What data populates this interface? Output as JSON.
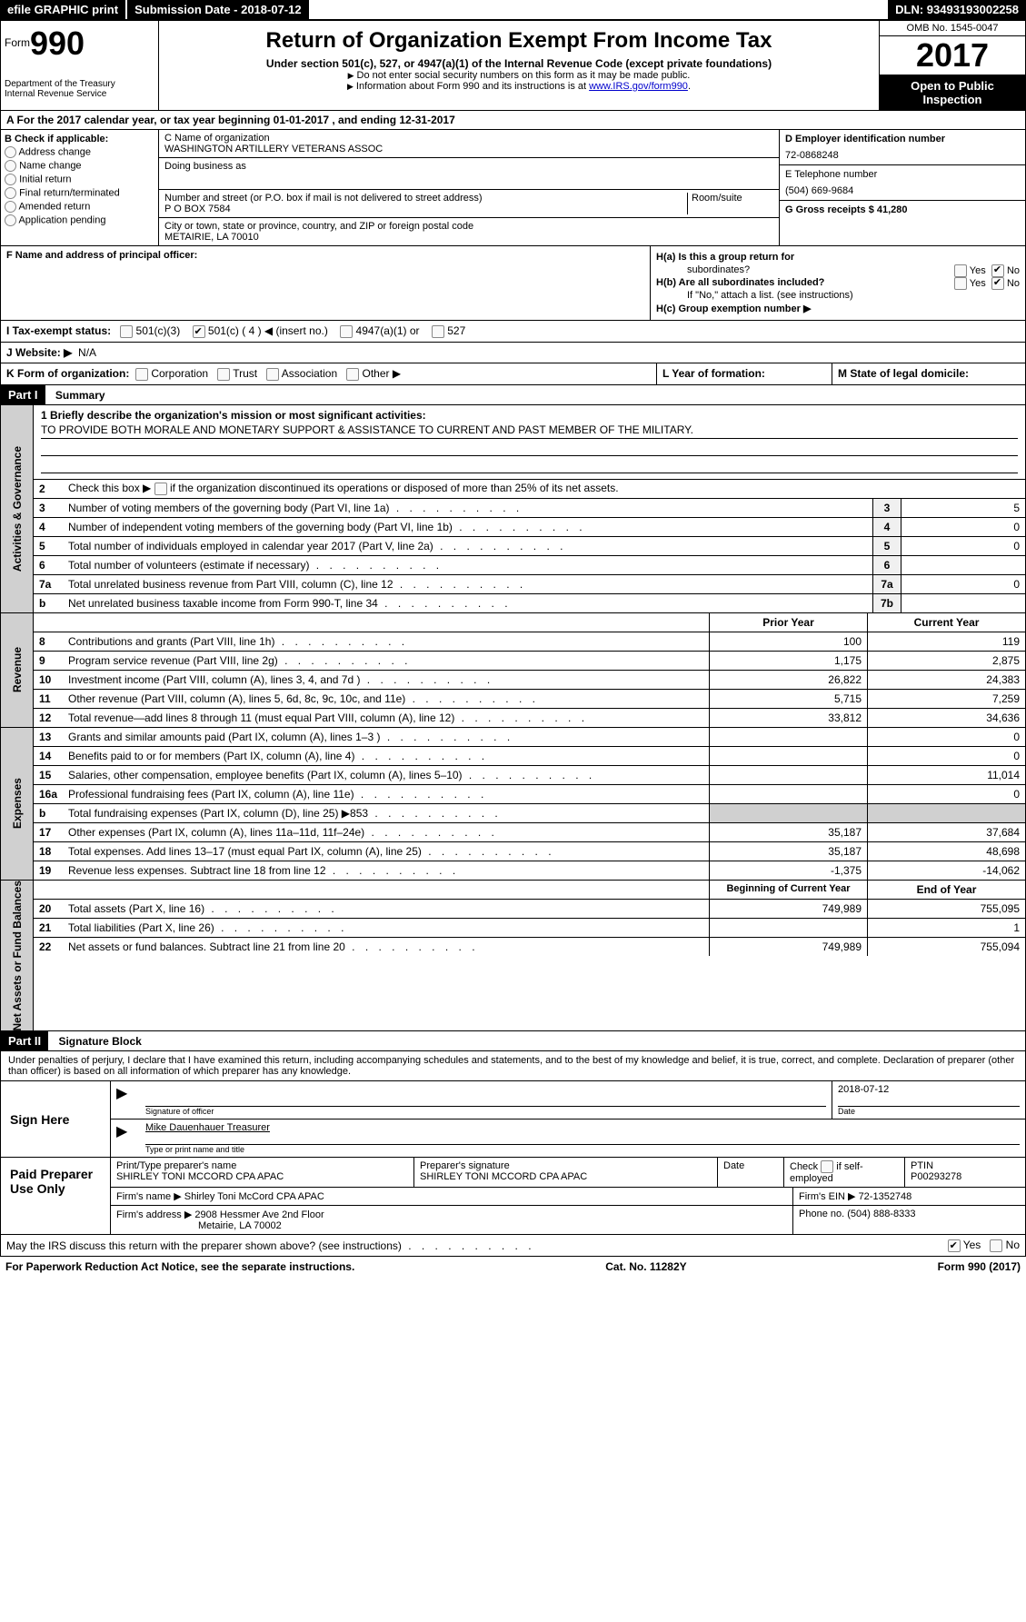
{
  "topbar": {
    "efile": "efile GRAPHIC print",
    "submission_label": "Submission Date - 2018-07-12",
    "dln": "DLN: 93493193002258"
  },
  "header": {
    "form_label": "Form",
    "form_number": "990",
    "dept1": "Department of the Treasury",
    "dept2": "Internal Revenue Service",
    "title": "Return of Organization Exempt From Income Tax",
    "subtitle": "Under section 501(c), 527, or 4947(a)(1) of the Internal Revenue Code (except private foundations)",
    "note1": "Do not enter social security numbers on this form as it may be made public.",
    "note2_pre": "Information about Form 990 and its instructions is at ",
    "note2_link": "www.IRS.gov/form990",
    "omb": "OMB No. 1545-0047",
    "year": "2017",
    "inspection1": "Open to Public",
    "inspection2": "Inspection"
  },
  "section_a": "A  For the 2017 calendar year, or tax year beginning 01-01-2017    , and ending 12-31-2017",
  "col_b": {
    "title": "B Check if applicable:",
    "opts": [
      "Address change",
      "Name change",
      "Initial return",
      "Final return/terminated",
      "Amended return",
      "Application pending"
    ]
  },
  "col_c": {
    "name_label": "C Name of organization",
    "name_value": "WASHINGTON ARTILLERY VETERANS ASSOC",
    "dba_label": "Doing business as",
    "dba_value": "",
    "street_label": "Number and street (or P.O. box if mail is not delivered to street address)",
    "street_value": "P O BOX 7584",
    "room_label": "Room/suite",
    "city_label": "City or town, state or province, country, and ZIP or foreign postal code",
    "city_value": "METAIRIE, LA   70010"
  },
  "col_d": {
    "ein_label": "D Employer identification number",
    "ein_value": "72-0868248",
    "phone_label": "E Telephone number",
    "phone_value": "(504) 669-9684",
    "gross_label": "G Gross receipts $ 41,280"
  },
  "section_f": {
    "f_label": "F Name and address of principal officer:",
    "ha_label": "H(a)  Is this a group return for",
    "ha_sub": "subordinates?",
    "hb_label": "H(b)  Are all subordinates included?",
    "hb_note": "If \"No,\" attach a list. (see instructions)",
    "hc_label": "H(c)  Group exemption number ▶",
    "yes": "Yes",
    "no": "No"
  },
  "section_i": {
    "label": "I   Tax-exempt status:",
    "opt1": "501(c)(3)",
    "opt2": "501(c) ( 4 ) ◀ (insert no.)",
    "opt3": "4947(a)(1) or",
    "opt4": "527"
  },
  "section_j": {
    "label": "J   Website: ▶",
    "value": "N/A"
  },
  "section_k": {
    "k_label": "K Form of organization:",
    "k_opts": [
      "Corporation",
      "Trust",
      "Association",
      "Other ▶"
    ],
    "l_label": "L Year of formation:",
    "m_label": "M State of legal domicile:"
  },
  "part1": {
    "header": "Part I",
    "title": "Summary"
  },
  "governance": {
    "tab": "Activities & Governance",
    "line1_label": "1  Briefly describe the organization's mission or most significant activities:",
    "mission": "TO PROVIDE BOTH MORALE AND MONETARY SUPPORT & ASSISTANCE TO CURRENT AND PAST MEMBER OF THE MILITARY.",
    "line2": "Check this box ▶       if the organization discontinued its operations or disposed of more than 25% of its net assets.",
    "rows": [
      {
        "n": "3",
        "t": "Number of voting members of the governing body (Part VI, line 1a)",
        "box": "3",
        "v": "5"
      },
      {
        "n": "4",
        "t": "Number of independent voting members of the governing body (Part VI, line 1b)",
        "box": "4",
        "v": "0"
      },
      {
        "n": "5",
        "t": "Total number of individuals employed in calendar year 2017 (Part V, line 2a)",
        "box": "5",
        "v": "0"
      },
      {
        "n": "6",
        "t": "Total number of volunteers (estimate if necessary)",
        "box": "6",
        "v": ""
      },
      {
        "n": "7a",
        "t": "Total unrelated business revenue from Part VIII, column (C), line 12",
        "box": "7a",
        "v": "0"
      },
      {
        "n": "b",
        "t": "Net unrelated business taxable income from Form 990-T, line 34",
        "box": "7b",
        "v": ""
      }
    ]
  },
  "revenue": {
    "tab": "Revenue",
    "col_prior": "Prior Year",
    "col_current": "Current Year",
    "rows": [
      {
        "n": "8",
        "t": "Contributions and grants (Part VIII, line 1h)",
        "p": "100",
        "c": "119"
      },
      {
        "n": "9",
        "t": "Program service revenue (Part VIII, line 2g)",
        "p": "1,175",
        "c": "2,875"
      },
      {
        "n": "10",
        "t": "Investment income (Part VIII, column (A), lines 3, 4, and 7d )",
        "p": "26,822",
        "c": "24,383"
      },
      {
        "n": "11",
        "t": "Other revenue (Part VIII, column (A), lines 5, 6d, 8c, 9c, 10c, and 11e)",
        "p": "5,715",
        "c": "7,259"
      },
      {
        "n": "12",
        "t": "Total revenue—add lines 8 through 11 (must equal Part VIII, column (A), line 12)",
        "p": "33,812",
        "c": "34,636"
      }
    ]
  },
  "expenses": {
    "tab": "Expenses",
    "rows": [
      {
        "n": "13",
        "t": "Grants and similar amounts paid (Part IX, column (A), lines 1–3 )",
        "p": "",
        "c": "0"
      },
      {
        "n": "14",
        "t": "Benefits paid to or for members (Part IX, column (A), line 4)",
        "p": "",
        "c": "0"
      },
      {
        "n": "15",
        "t": "Salaries, other compensation, employee benefits (Part IX, column (A), lines 5–10)",
        "p": "",
        "c": "11,014"
      },
      {
        "n": "16a",
        "t": "Professional fundraising fees (Part IX, column (A), line 11e)",
        "p": "",
        "c": "0"
      },
      {
        "n": "b",
        "t": "Total fundraising expenses (Part IX, column (D), line 25) ▶853",
        "p": "grey",
        "c": "grey"
      },
      {
        "n": "17",
        "t": "Other expenses (Part IX, column (A), lines 11a–11d, 11f–24e)",
        "p": "35,187",
        "c": "37,684"
      },
      {
        "n": "18",
        "t": "Total expenses. Add lines 13–17 (must equal Part IX, column (A), line 25)",
        "p": "35,187",
        "c": "48,698"
      },
      {
        "n": "19",
        "t": "Revenue less expenses. Subtract line 18 from line 12",
        "p": "-1,375",
        "c": "-14,062"
      }
    ]
  },
  "netassets": {
    "tab": "Net Assets or Fund Balances",
    "col_prior": "Beginning of Current Year",
    "col_current": "End of Year",
    "rows": [
      {
        "n": "20",
        "t": "Total assets (Part X, line 16)",
        "p": "749,989",
        "c": "755,095"
      },
      {
        "n": "21",
        "t": "Total liabilities (Part X, line 26)",
        "p": "",
        "c": "1"
      },
      {
        "n": "22",
        "t": "Net assets or fund balances. Subtract line 21 from line 20",
        "p": "749,989",
        "c": "755,094"
      }
    ]
  },
  "part2": {
    "header": "Part II",
    "title": "Signature Block",
    "intro": "Under penalties of perjury, I declare that I have examined this return, including accompanying schedules and statements, and to the best of my knowledge and belief, it is true, correct, and complete. Declaration of preparer (other than officer) is based on all information of which preparer has any knowledge."
  },
  "sign_here": {
    "label": "Sign Here",
    "sig_label": "Signature of officer",
    "date_val": "2018-07-12",
    "date_label": "Date",
    "name_val": "Mike Dauenhauer Treasurer",
    "name_label": "Type or print name and title"
  },
  "paid_preparer": {
    "label": "Paid Preparer Use Only",
    "r1c1_label": "Print/Type preparer's name",
    "r1c1_val": "SHIRLEY TONI MCCORD CPA APAC",
    "r1c2_label": "Preparer's signature",
    "r1c2_val": "SHIRLEY TONI MCCORD CPA APAC",
    "r1c3_label": "Date",
    "r1c4_label": "Check        if self-employed",
    "r1c5_label": "PTIN",
    "r1c5_val": "P00293278",
    "r2_label": "Firm's name      ▶",
    "r2_val": "Shirley Toni McCord CPA APAC",
    "r2_ein_label": "Firm's EIN ▶",
    "r2_ein_val": "72-1352748",
    "r3_label": "Firm's address ▶",
    "r3_val1": "2908 Hessmer Ave 2nd Floor",
    "r3_val2": "Metairie, LA   70002",
    "r3_phone_label": "Phone no.",
    "r3_phone_val": "(504) 888-8333"
  },
  "footer": {
    "discuss": "May the IRS discuss this return with the preparer shown above? (see instructions)",
    "yes": "Yes",
    "no": "No",
    "paperwork": "For Paperwork Reduction Act Notice, see the separate instructions.",
    "cat": "Cat. No. 11282Y",
    "form": "Form 990 (2017)"
  }
}
